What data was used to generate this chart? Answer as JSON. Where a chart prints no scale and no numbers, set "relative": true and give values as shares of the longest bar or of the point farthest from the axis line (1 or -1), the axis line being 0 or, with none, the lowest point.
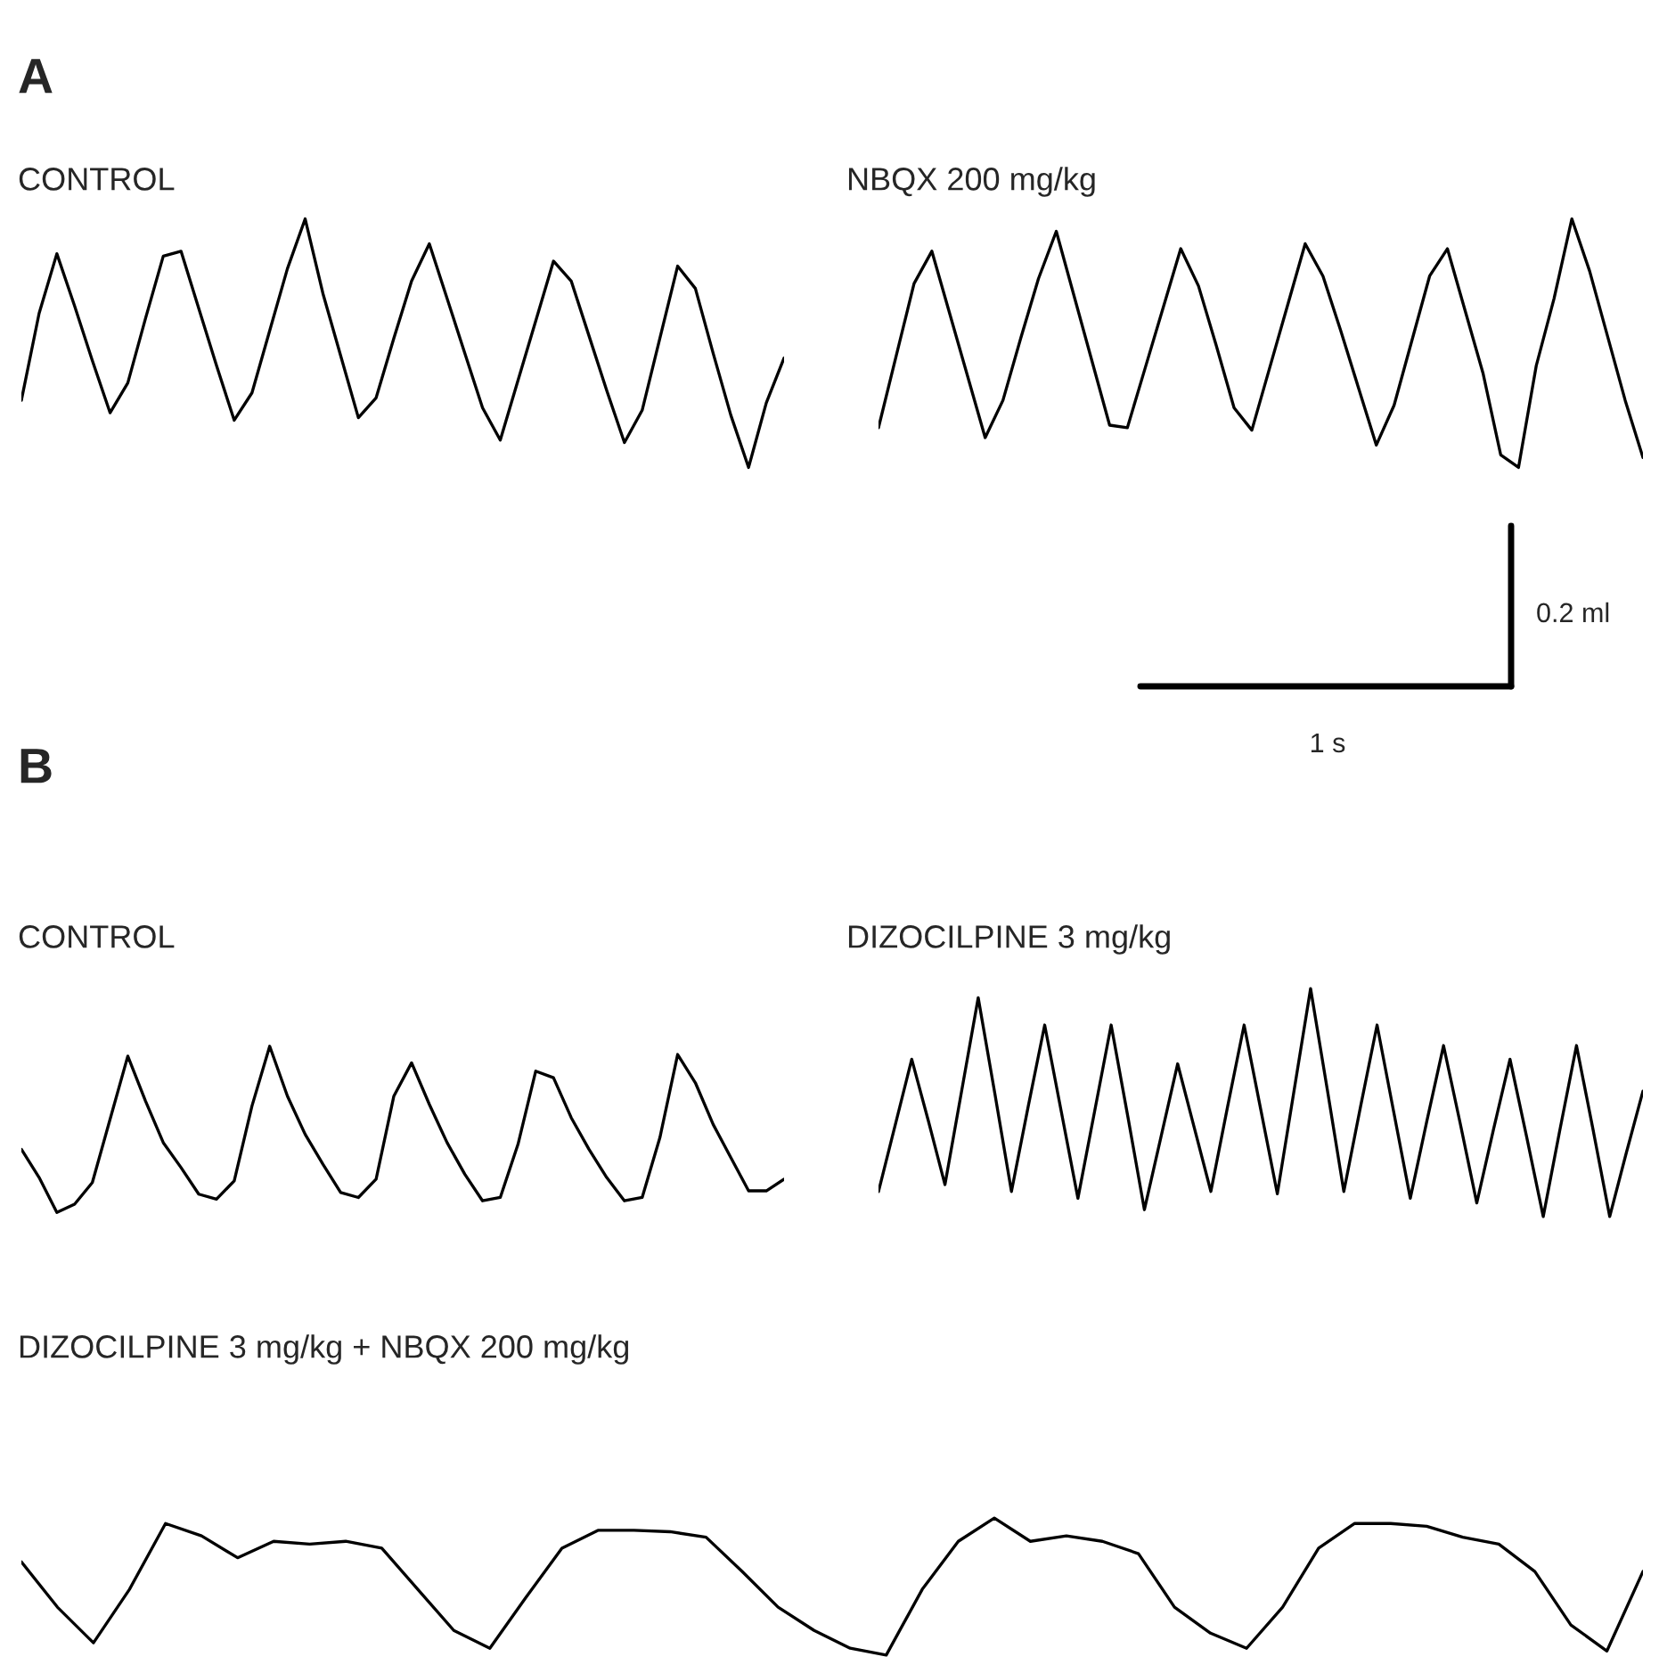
{
  "chart_data": [
    {
      "type": "line",
      "title": "CONTROL",
      "relative": true,
      "color": "#000000",
      "annotations": [
        "A"
      ],
      "categories": [
        null,
        null,
        null,
        null,
        null,
        null,
        null,
        null,
        null,
        null,
        null,
        null,
        null,
        null,
        null,
        null,
        null,
        null,
        null,
        null,
        null,
        null,
        null,
        null,
        null,
        null,
        null,
        null,
        null,
        null,
        null,
        null,
        null,
        null,
        null,
        null,
        null,
        null,
        null,
        null,
        null,
        null,
        null,
        null
      ],
      "values": [
        0.27,
        0.62,
        0.86,
        0.65,
        0.43,
        0.22,
        0.34,
        0.6,
        0.85,
        0.87,
        0.64,
        0.41,
        0.19,
        0.3,
        0.55,
        0.8,
        1.0,
        0.7,
        0.45,
        0.2,
        0.28,
        0.52,
        0.75,
        0.9,
        0.68,
        0.46,
        0.24,
        0.11,
        0.35,
        0.59,
        0.83,
        0.75,
        0.53,
        0.31,
        0.1,
        0.23,
        0.52,
        0.81,
        0.72,
        0.46,
        0.21,
        0.0,
        0.26,
        0.44
      ]
    },
    {
      "type": "line",
      "title": "NBQX 200 mg/kg",
      "relative": true,
      "color": "#000000",
      "annotations": [
        "0.2 ml",
        "1 s"
      ],
      "categories": [
        null,
        null,
        null,
        null,
        null,
        null,
        null,
        null,
        null,
        null,
        null,
        null,
        null,
        null,
        null,
        null,
        null,
        null,
        null,
        null,
        null,
        null,
        null,
        null,
        null,
        null,
        null,
        null,
        null,
        null,
        null,
        null,
        null,
        null,
        null,
        null,
        null,
        null,
        null,
        null,
        null,
        null,
        null,
        null
      ],
      "values": [
        0.16,
        0.45,
        0.74,
        0.87,
        0.62,
        0.37,
        0.12,
        0.27,
        0.52,
        0.76,
        0.95,
        0.69,
        0.43,
        0.17,
        0.16,
        0.4,
        0.64,
        0.88,
        0.73,
        0.49,
        0.24,
        0.15,
        0.4,
        0.65,
        0.9,
        0.77,
        0.55,
        0.32,
        0.09,
        0.25,
        0.51,
        0.77,
        0.88,
        0.63,
        0.38,
        0.05,
        0.0,
        0.41,
        0.68,
        1.0,
        0.79,
        0.53,
        0.27,
        0.04
      ]
    },
    {
      "type": "line",
      "title": "CONTROL",
      "relative": true,
      "color": "#000000",
      "annotations": [
        "B"
      ],
      "categories": [
        null,
        null,
        null,
        null,
        null,
        null,
        null,
        null,
        null,
        null,
        null,
        null,
        null,
        null,
        null,
        null,
        null,
        null,
        null,
        null,
        null,
        null,
        null,
        null,
        null,
        null,
        null,
        null,
        null,
        null,
        null,
        null,
        null,
        null,
        null,
        null,
        null,
        null,
        null,
        null,
        null,
        null,
        null,
        null
      ],
      "values": [
        0.38,
        0.21,
        0.0,
        0.05,
        0.18,
        0.56,
        0.94,
        0.67,
        0.42,
        0.27,
        0.11,
        0.08,
        0.19,
        0.64,
        1.0,
        0.7,
        0.47,
        0.29,
        0.12,
        0.09,
        0.2,
        0.7,
        0.9,
        0.65,
        0.42,
        0.23,
        0.07,
        0.09,
        0.41,
        0.85,
        0.81,
        0.57,
        0.38,
        0.21,
        0.07,
        0.09,
        0.45,
        0.95,
        0.78,
        0.53,
        0.33,
        0.13,
        0.13,
        0.2
      ]
    },
    {
      "type": "line",
      "title": "DIZOCILPINE 3 mg/kg",
      "relative": true,
      "color": "#000000",
      "categories": [
        null,
        null,
        null,
        null,
        null,
        null,
        null,
        null,
        null,
        null,
        null,
        null,
        null,
        null,
        null,
        null,
        null,
        null,
        null,
        null,
        null,
        null,
        null,
        null,
        null,
        null,
        null,
        null,
        null,
        null,
        null,
        null,
        null,
        null,
        null,
        null,
        null,
        null,
        null,
        null,
        null,
        null,
        null,
        null,
        null,
        null,
        null
      ],
      "values": [
        0.11,
        0.4,
        0.69,
        0.42,
        0.14,
        0.55,
        0.96,
        0.54,
        0.11,
        0.48,
        0.84,
        0.46,
        0.08,
        0.46,
        0.84,
        0.44,
        0.03,
        0.35,
        0.67,
        0.39,
        0.11,
        0.48,
        0.84,
        0.47,
        0.1,
        0.55,
        1.0,
        0.56,
        0.11,
        0.48,
        0.84,
        0.46,
        0.08,
        0.42,
        0.75,
        0.41,
        0.06,
        0.38,
        0.69,
        0.35,
        0.0,
        0.38,
        0.75,
        0.38,
        0.0,
        0.28,
        0.55
      ]
    },
    {
      "type": "line",
      "title": "DIZOCILPINE 3 mg/kg + NBQX 200 mg/kg",
      "relative": true,
      "color": "#000000",
      "categories": [
        null,
        null,
        null,
        null,
        null,
        null,
        null,
        null,
        null,
        null,
        null,
        null,
        null,
        null,
        null,
        null,
        null,
        null,
        null,
        null,
        null,
        null,
        null,
        null,
        null,
        null,
        null,
        null,
        null,
        null,
        null,
        null,
        null,
        null,
        null,
        null,
        null,
        null,
        null,
        null,
        null,
        null,
        null,
        null,
        null,
        null
      ],
      "values": [
        0.68,
        0.35,
        0.09,
        0.48,
        0.96,
        0.87,
        0.71,
        0.83,
        0.81,
        0.83,
        0.78,
        0.48,
        0.18,
        0.05,
        0.42,
        0.78,
        0.91,
        0.91,
        0.9,
        0.86,
        0.61,
        0.35,
        0.18,
        0.05,
        0.0,
        0.48,
        0.83,
        1.0,
        0.83,
        0.87,
        0.83,
        0.74,
        0.35,
        0.16,
        0.05,
        0.35,
        0.78,
        0.96,
        0.96,
        0.94,
        0.86,
        0.81,
        0.61,
        0.22,
        0.03,
        0.61
      ]
    }
  ]
}
